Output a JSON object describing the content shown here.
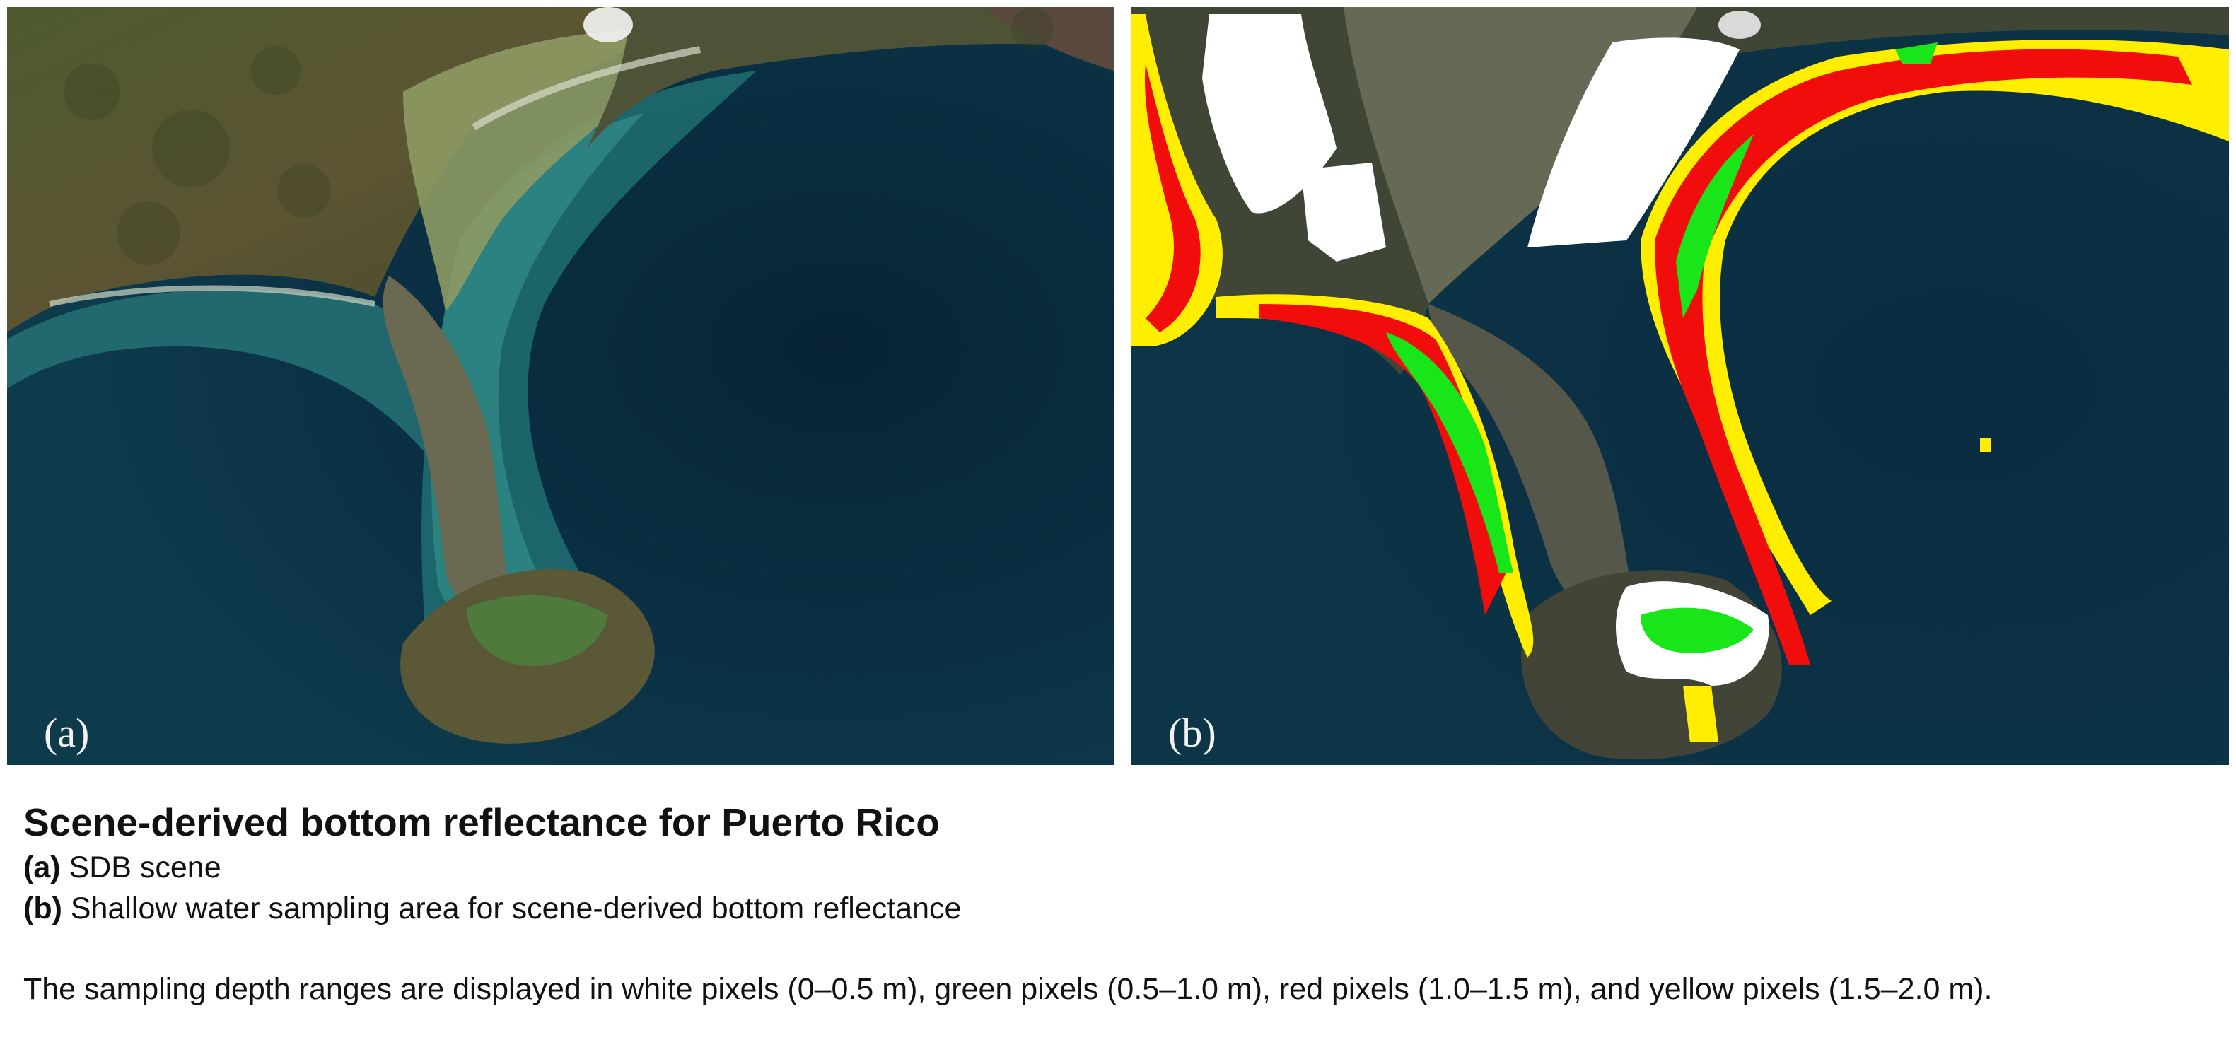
{
  "panels": {
    "a": {
      "label": "(a)"
    },
    "b": {
      "label": "(b)"
    }
  },
  "caption": {
    "title": "Scene-derived bottom reflectance for Puerto Rico",
    "items": [
      {
        "tag": "(a)",
        "text": "SDB scene"
      },
      {
        "tag": "(b)",
        "text": "Shallow water sampling area for scene-derived bottom reflectance"
      }
    ],
    "note": "The sampling depth ranges are displayed in white pixels (0–0.5 m), green pixels (0.5–1.0 m), red pixels (1.0–1.5 m), and yellow pixels (1.5–2.0 m)."
  },
  "depth_classes": [
    {
      "color_name": "white",
      "range": "0–0.5 m",
      "color": "#ffffff"
    },
    {
      "color_name": "green",
      "range": "0.5–1.0 m",
      "color": "#19e619"
    },
    {
      "color_name": "red",
      "range": "1.0–1.5 m",
      "color": "#f20d0d"
    },
    {
      "color_name": "yellow",
      "range": "1.5–2.0 m",
      "color": "#ffee00"
    }
  ],
  "colors": {
    "deep_water": "#0a2a3e",
    "shallow_water": "#2f8a86",
    "land": "#5d5633"
  }
}
